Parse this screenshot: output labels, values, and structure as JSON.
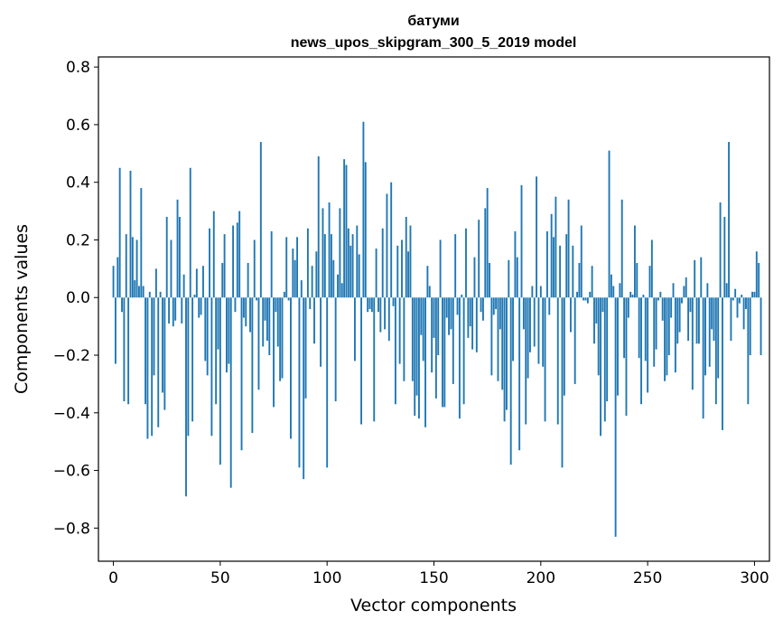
{
  "chart_data": {
    "type": "bar",
    "title": "батуми",
    "subtitle": "news_upos_skipgram_300_5_2019 model",
    "xlabel": "Vector components",
    "ylabel": "Components values",
    "xlim": [
      -7,
      307
    ],
    "ylim": [
      -0.915,
      0.835
    ],
    "xticks": [
      0,
      50,
      100,
      150,
      200,
      250,
      300
    ],
    "xtick_labels": [
      "0",
      "50",
      "100",
      "150",
      "200",
      "250",
      "300"
    ],
    "yticks": [
      -0.8,
      -0.6,
      -0.4,
      -0.2,
      0.0,
      0.2,
      0.4,
      0.6,
      0.8
    ],
    "ytick_labels": [
      "−0.8",
      "−0.6",
      "−0.4",
      "−0.2",
      "0.0",
      "0.2",
      "0.4",
      "0.6",
      "0.8"
    ],
    "bar_color": "#1f77b4",
    "grid": false,
    "legend": "none",
    "values": [
      0.11,
      -0.23,
      0.14,
      0.45,
      -0.05,
      -0.36,
      0.22,
      -0.37,
      0.44,
      0.21,
      0.06,
      0.2,
      0.04,
      0.38,
      0.04,
      -0.37,
      -0.49,
      0.02,
      -0.48,
      -0.27,
      0.1,
      -0.45,
      0.02,
      -0.33,
      -0.39,
      0.28,
      -0.09,
      0.2,
      -0.1,
      -0.08,
      0.34,
      0.28,
      -0.09,
      0.08,
      -0.69,
      -0.48,
      0.45,
      -0.43,
      0.01,
      0.1,
      -0.07,
      -0.06,
      0.11,
      -0.22,
      -0.27,
      0.24,
      -0.48,
      0.3,
      -0.37,
      -0.18,
      -0.58,
      0.12,
      0.22,
      -0.26,
      -0.23,
      -0.66,
      0.25,
      -0.05,
      0.26,
      0.3,
      -0.53,
      -0.07,
      -0.1,
      0.12,
      -0.12,
      -0.47,
      0.2,
      -0.01,
      -0.32,
      0.54,
      -0.17,
      -0.08,
      -0.15,
      -0.2,
      0.23,
      -0.38,
      -0.05,
      -0.17,
      -0.29,
      -0.28,
      0.02,
      0.21,
      -0.01,
      -0.49,
      0.17,
      0.13,
      0.21,
      -0.59,
      0.06,
      -0.63,
      -0.35,
      0.24,
      -0.04,
      0.11,
      -0.16,
      0.16,
      0.49,
      -0.24,
      0.31,
      0.22,
      -0.59,
      0.33,
      0.22,
      0.13,
      -0.36,
      0.08,
      0.31,
      0.05,
      0.48,
      0.46,
      0.24,
      0.18,
      0.22,
      -0.22,
      0.25,
      0.15,
      -0.44,
      0.61,
      0.47,
      -0.05,
      -0.04,
      -0.05,
      -0.43,
      0.17,
      -0.05,
      -0.12,
      0.24,
      -0.11,
      0.36,
      -0.15,
      0.4,
      -0.03,
      -0.37,
      0.18,
      -0.23,
      0.2,
      -0.29,
      0.28,
      0.16,
      0.25,
      -0.29,
      -0.41,
      -0.34,
      -0.42,
      -0.13,
      -0.22,
      -0.45,
      0.11,
      0.04,
      -0.26,
      -0.14,
      -0.35,
      -0.2,
      0.2,
      -0.38,
      -0.38,
      -0.07,
      -0.13,
      -0.11,
      -0.3,
      0.22,
      -0.06,
      -0.42,
      0.01,
      -0.37,
      0.24,
      -0.14,
      -0.1,
      -0.18,
      0.14,
      -0.19,
      0.27,
      -0.05,
      -0.08,
      0.31,
      0.38,
      0.12,
      -0.27,
      -0.06,
      -0.04,
      -0.29,
      -0.11,
      -0.32,
      -0.43,
      -0.39,
      0.13,
      -0.58,
      -0.22,
      0.23,
      0.14,
      -0.53,
      0.39,
      -0.11,
      -0.44,
      -0.28,
      -0.19,
      0.04,
      -0.17,
      0.42,
      -0.23,
      0.04,
      -0.24,
      -0.43,
      0.23,
      -0.06,
      0.29,
      0.21,
      0.35,
      -0.44,
      0.18,
      -0.59,
      -0.34,
      0.22,
      0.34,
      -0.12,
      0.18,
      -0.3,
      0.02,
      0.12,
      0.25,
      -0.01,
      -0.01,
      -0.02,
      0.02,
      0.11,
      -0.16,
      -0.09,
      -0.27,
      -0.48,
      -0.05,
      -0.43,
      -0.36,
      0.51,
      0.08,
      0.04,
      -0.83,
      -0.34,
      0.05,
      0.34,
      -0.21,
      -0.41,
      -0.07,
      0.02,
      0.01,
      0.25,
      0.12,
      -0.21,
      -0.37,
      0.01,
      -0.22,
      -0.33,
      0.11,
      0.2,
      -0.24,
      -0.18,
      -0.01,
      0.02,
      -0.08,
      -0.29,
      -0.27,
      -0.2,
      -0.07,
      0.05,
      -0.26,
      -0.16,
      -0.12,
      -0.02,
      0.04,
      0.07,
      -0.15,
      -0.05,
      -0.32,
      0.13,
      -0.16,
      -0.16,
      0.14,
      -0.42,
      -0.27,
      0.05,
      -0.24,
      -0.11,
      -0.15,
      -0.37,
      -0.28,
      0.33,
      -0.46,
      0.28,
      0.05,
      0.54,
      -0.15,
      -0.01,
      0.03,
      -0.07,
      -0.02,
      0.01,
      -0.11,
      -0.04,
      -0.37,
      -0.2,
      0.02,
      0.02,
      0.16,
      0.12,
      -0.2
    ]
  }
}
